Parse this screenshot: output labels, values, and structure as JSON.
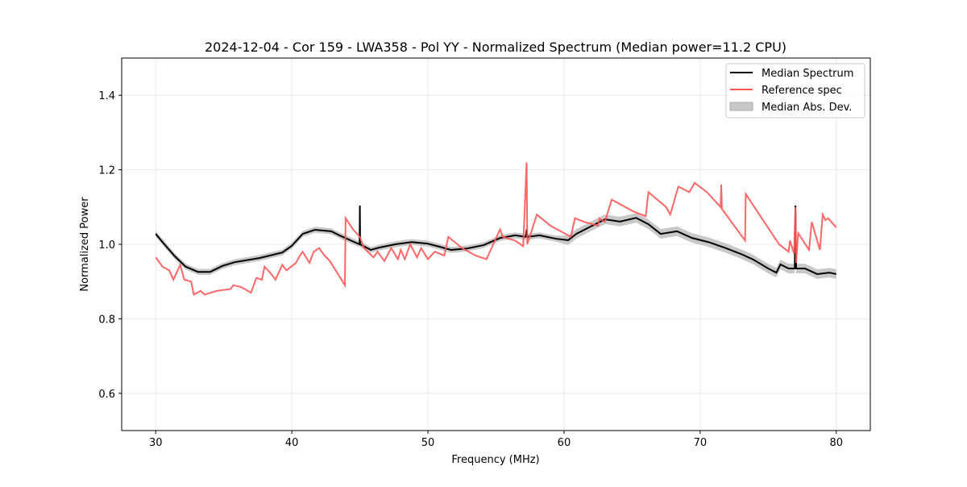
{
  "chart_data": {
    "type": "line",
    "title": "2024-12-04 - Cor 159 - LWA358 - Pol YY - Normalized Spectrum (Median power=11.2 CPU)",
    "xlabel": "Frequency (MHz)",
    "ylabel": "Normalized Power",
    "xlim": [
      27.5,
      82.5
    ],
    "ylim": [
      0.5,
      1.5
    ],
    "xticks": [
      30,
      40,
      50,
      60,
      70,
      80
    ],
    "xtick_labels": [
      "30",
      "40",
      "50",
      "60",
      "70",
      "80"
    ],
    "yticks": [
      0.6,
      0.8,
      1.0,
      1.2,
      1.4
    ],
    "ytick_labels": [
      "0.6",
      "0.8",
      "1.0",
      "1.2",
      "1.4"
    ],
    "grid": true,
    "legend_position": "top-right",
    "legend": [
      "Median Spectrum",
      "Reference spec",
      "Median Abs. Dev."
    ],
    "colors": {
      "median": "#000000",
      "reference": "#ff5555",
      "mad": "#c8c8c8"
    },
    "series": [
      {
        "name": "Median Spectrum",
        "x": [
          30.0,
          30.5,
          31.4,
          32.2,
          33.1,
          34.0,
          34.9,
          35.8,
          37.6,
          39.3,
          40.0,
          40.8,
          41.7,
          42.9,
          43.5,
          44.6,
          44.98,
          45.0,
          45.02,
          45.8,
          46.4,
          47.6,
          48.8,
          49.95,
          50.8,
          51.7,
          52.9,
          54.1,
          55.3,
          56.4,
          57.2,
          57.25,
          57.3,
          58.2,
          59.4,
          60.3,
          60.9,
          61.8,
          63.0,
          64.1,
          65.3,
          66.2,
          67.1,
          68.3,
          69.4,
          70.6,
          71.8,
          73.0,
          73.9,
          75.0,
          75.6,
          75.9,
          76.5,
          76.95,
          77.0,
          77.05,
          77.7,
          78.6,
          79.5,
          80.0
        ],
        "y": [
          1.028,
          1.006,
          0.968,
          0.94,
          0.926,
          0.926,
          0.942,
          0.952,
          0.963,
          0.978,
          0.996,
          1.028,
          1.039,
          1.035,
          1.024,
          1.006,
          1.0,
          1.104,
          1.0,
          0.985,
          0.991,
          1.0,
          1.006,
          1.002,
          0.994,
          0.985,
          0.989,
          0.998,
          1.017,
          1.024,
          1.02,
          1.04,
          1.02,
          1.024,
          1.015,
          1.011,
          1.028,
          1.045,
          1.067,
          1.061,
          1.071,
          1.054,
          1.028,
          1.035,
          1.017,
          1.006,
          0.991,
          0.974,
          0.959,
          0.935,
          0.924,
          0.946,
          0.935,
          0.935,
          1.104,
          0.935,
          0.935,
          0.92,
          0.924,
          0.92
        ],
        "mad": 0.008
      },
      {
        "name": "Reference spec",
        "x": [
          30.0,
          30.5,
          31.0,
          31.3,
          31.8,
          32.1,
          32.6,
          32.8,
          33.3,
          33.6,
          34.5,
          35.5,
          35.7,
          36.3,
          37.0,
          37.4,
          37.8,
          38.0,
          38.5,
          38.8,
          39.3,
          39.6,
          40.3,
          40.6,
          40.8,
          41.3,
          41.6,
          42.0,
          42.4,
          42.8,
          43.9,
          43.95,
          44.5,
          45.0,
          45.3,
          46.0,
          46.3,
          46.8,
          47.3,
          47.8,
          48.0,
          48.3,
          48.7,
          49.2,
          49.5,
          50.0,
          50.5,
          51.2,
          51.5,
          52.5,
          53.5,
          54.3,
          55.3,
          55.5,
          56.4,
          57.0,
          57.25,
          57.3,
          58.0,
          59.0,
          59.5,
          60.5,
          60.8,
          61.5,
          62.5,
          62.6,
          63.0,
          63.5,
          64.5,
          65.0,
          66.0,
          66.2,
          67.5,
          67.8,
          68.4,
          69.2,
          69.6,
          70.5,
          71.5,
          71.55,
          71.6,
          73.3,
          73.35,
          75.8,
          76.5,
          76.6,
          76.9,
          77.0,
          77.05,
          77.2,
          78.0,
          78.2,
          78.8,
          79.0,
          79.2,
          79.4,
          80.0
        ],
        "y": [
          0.965,
          0.94,
          0.93,
          0.905,
          0.945,
          0.905,
          0.9,
          0.865,
          0.875,
          0.865,
          0.875,
          0.88,
          0.89,
          0.885,
          0.87,
          0.91,
          0.905,
          0.94,
          0.92,
          0.905,
          0.945,
          0.93,
          0.95,
          0.97,
          0.98,
          0.95,
          0.98,
          0.99,
          0.97,
          0.955,
          0.89,
          1.07,
          1.04,
          1.02,
          0.99,
          0.965,
          0.98,
          0.955,
          0.99,
          0.96,
          0.985,
          0.96,
          1.0,
          0.965,
          0.99,
          0.96,
          0.98,
          0.97,
          1.02,
          0.99,
          0.97,
          0.96,
          1.04,
          1.02,
          1.01,
          0.995,
          1.22,
          1.0,
          1.08,
          1.05,
          1.04,
          1.02,
          1.07,
          1.06,
          1.05,
          1.07,
          1.06,
          1.12,
          1.1,
          1.09,
          1.075,
          1.14,
          1.1,
          1.08,
          1.155,
          1.14,
          1.165,
          1.14,
          1.1,
          1.16,
          1.095,
          1.01,
          1.135,
          1.0,
          0.98,
          1.01,
          0.975,
          1.1,
          0.95,
          1.03,
          0.985,
          1.06,
          0.985,
          1.08,
          1.065,
          1.07,
          1.045
        ]
      }
    ]
  }
}
